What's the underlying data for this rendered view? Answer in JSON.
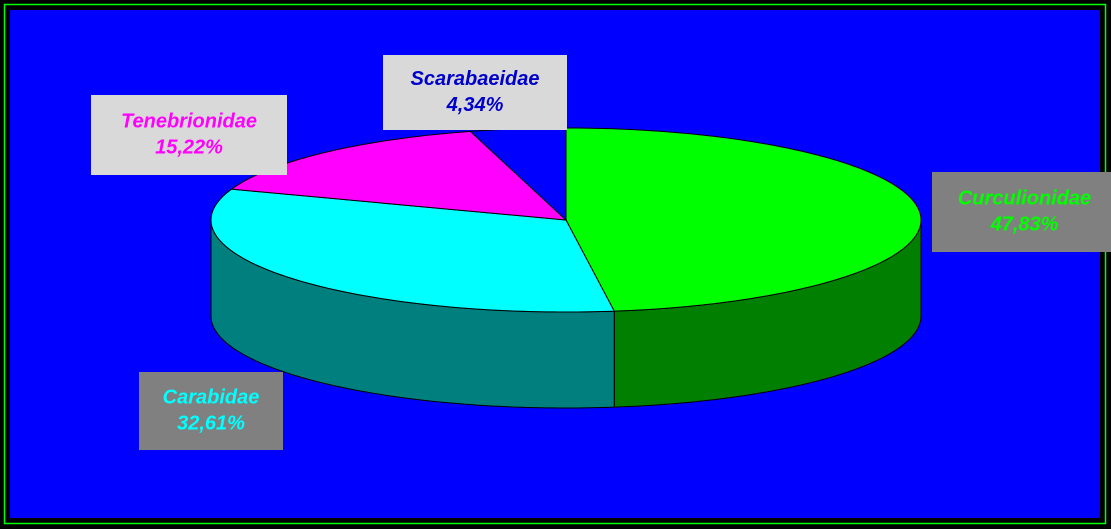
{
  "chart_data": {
    "type": "pie",
    "categories": [
      "Curculionidae",
      "Carabidae",
      "Tenebrionidae",
      "Scarabaeidae"
    ],
    "values": [
      47.83,
      32.61,
      15.22,
      4.34
    ],
    "value_labels": [
      "47,83%",
      "32,61%",
      "15,22%",
      "4,34%"
    ],
    "colors": [
      "#00ff00",
      "#00ffff",
      "#ff00ff",
      "#0000ff"
    ]
  }
}
